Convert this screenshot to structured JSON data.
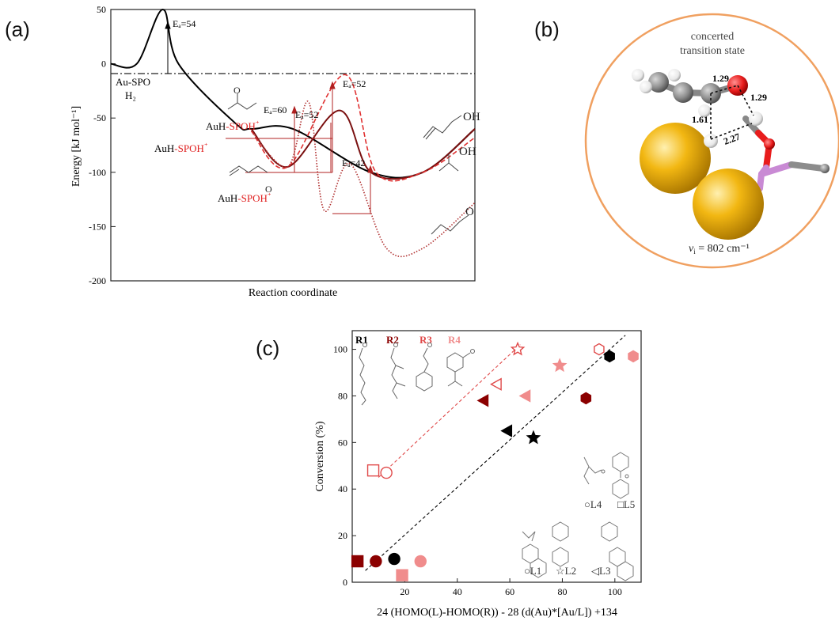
{
  "panels": {
    "a": {
      "label": "(a)"
    },
    "b": {
      "label": "(b)"
    },
    "c": {
      "label": "(c)"
    }
  },
  "chart_data": [
    {
      "panel": "a",
      "type": "line",
      "xlabel": "Reaction coordinate",
      "ylabel": "Energy [kJ mol⁻¹]",
      "ylim": [
        -200,
        50
      ],
      "yticks": [
        50,
        0,
        -50,
        -100,
        -150,
        -200
      ],
      "grid": false,
      "reference_line_y": 0,
      "series": [
        {
          "color": "#000000",
          "style": "solid",
          "x": [
            0,
            0.5,
            1,
            1.3,
            2.4,
            2.7,
            3.5,
            5,
            6,
            7
          ],
          "y": [
            0,
            0,
            50,
            0,
            -55,
            -60,
            -60,
            -100,
            -100,
            -60
          ]
        },
        {
          "color": "#7a1010",
          "style": "solid",
          "x": [
            2.7,
            3.4,
            4.4,
            5,
            6,
            7
          ],
          "y": [
            -60,
            -95,
            -43,
            -100,
            -100,
            -60
          ]
        },
        {
          "color": "#e03030",
          "style": "dashed",
          "x": [
            2.7,
            3.4,
            4.5,
            5.1,
            6,
            7
          ],
          "y": [
            -62,
            -95,
            -10,
            -100,
            -100,
            -68
          ]
        },
        {
          "color": "#b03030",
          "style": "dotted",
          "x": [
            2.7,
            3.4,
            3.8,
            4.1,
            4.6,
            5.3,
            6,
            7
          ],
          "y": [
            -62,
            -95,
            -35,
            -135,
            -92,
            -170,
            -170,
            -128
          ]
        }
      ],
      "annotations": [
        {
          "text": "Eₐ=54",
          "value": 54
        },
        {
          "text": "Eₐ=60",
          "value": 60
        },
        {
          "text": "Eₐ=52",
          "value": 52
        },
        {
          "text": "Eₐ=52",
          "value": 52
        },
        {
          "text": "Eₐ=42",
          "value": 42
        }
      ],
      "species": {
        "s1": "Au-SPO",
        "s2": "H₂",
        "s3a": "AuH",
        "s3b": "-SPOH",
        "s3c": "⁺",
        "s4a": "AuH",
        "s4b": "-SPOH",
        "s4c": "⁺",
        "s5a": "AuH",
        "s5b": "-SPOH",
        "s5c": "⁺",
        "m_o": "O",
        "m_oh1": "OH",
        "m_oh2": "OH",
        "m_o2": "O"
      }
    },
    {
      "panel": "c",
      "type": "scatter",
      "xlabel": "24 (HOMO(L)-HOMO(R)) - 28 (d(Au)*[Au/L]) +134",
      "ylabel": "Conversion (%)",
      "xlim": [
        0,
        110
      ],
      "ylim": [
        0,
        108
      ],
      "xticks": [
        20,
        40,
        60,
        80,
        100
      ],
      "yticks": [
        0,
        20,
        40,
        60,
        80,
        100
      ],
      "grid": false,
      "reactant_labels": [
        "R1",
        "R2",
        "R3",
        "R4"
      ],
      "ligand_labels": [
        "○L4",
        "□L5",
        "○L1",
        "☆L2",
        "◁L3"
      ],
      "colors": {
        "R1": "#000000",
        "R2": "#8b0000",
        "R3": "#e04a4a",
        "R4": "#f08c8c"
      },
      "fit_lines": [
        {
          "color": "#e04a4a",
          "x": [
            10,
            64
          ],
          "y": [
            45,
            102
          ]
        },
        {
          "color": "#000000",
          "x": [
            5,
            104
          ],
          "y": [
            5,
            106
          ]
        }
      ],
      "points": [
        {
          "x": 2,
          "y": 9,
          "marker": "square",
          "color": "#8b0000",
          "filled": true
        },
        {
          "x": 9,
          "y": 9,
          "marker": "circle",
          "color": "#8b0000",
          "filled": true
        },
        {
          "x": 16,
          "y": 10,
          "marker": "circle",
          "color": "#000000",
          "filled": true
        },
        {
          "x": 19,
          "y": 3,
          "marker": "square",
          "color": "#f08c8c",
          "filled": true
        },
        {
          "x": 26,
          "y": 9,
          "marker": "circle",
          "color": "#f08c8c",
          "filled": true
        },
        {
          "x": 8,
          "y": 48,
          "marker": "square",
          "color": "#e04a4a",
          "filled": false
        },
        {
          "x": 13,
          "y": 47,
          "marker": "circle",
          "color": "#e04a4a",
          "filled": false
        },
        {
          "x": 50,
          "y": 78,
          "marker": "triangle",
          "color": "#8b0000",
          "filled": true
        },
        {
          "x": 55,
          "y": 85,
          "marker": "triangle",
          "color": "#e04a4a",
          "filled": false
        },
        {
          "x": 59,
          "y": 65,
          "marker": "triangle",
          "color": "#000000",
          "filled": true
        },
        {
          "x": 63,
          "y": 100,
          "marker": "star",
          "color": "#e04a4a",
          "filled": false
        },
        {
          "x": 66,
          "y": 80,
          "marker": "triangle",
          "color": "#f08c8c",
          "filled": true
        },
        {
          "x": 69,
          "y": 62,
          "marker": "star",
          "color": "#000000",
          "filled": true
        },
        {
          "x": 79,
          "y": 93,
          "marker": "star",
          "color": "#f08c8c",
          "filled": true
        },
        {
          "x": 89,
          "y": 79,
          "marker": "hexagon",
          "color": "#8b0000",
          "filled": true
        },
        {
          "x": 94,
          "y": 100,
          "marker": "hexagon",
          "color": "#e04a4a",
          "filled": false
        },
        {
          "x": 98,
          "y": 97,
          "marker": "hexagon",
          "color": "#000000",
          "filled": true
        },
        {
          "x": 107,
          "y": 97,
          "marker": "hexagon",
          "color": "#f08c8c",
          "filled": true
        }
      ]
    }
  ],
  "molecule": {
    "title_line1": "concerted",
    "title_line2": "transition state",
    "bond_129a": "1.29",
    "bond_129b": "1.29",
    "bond_161": "1.61",
    "bond_227": "2.27",
    "freq_sym": "ν",
    "freq_sub": "i",
    "freq_val": " = 802 cm⁻¹",
    "atom_gold": "#f2b712",
    "atom_oxygen": "#e81c1c",
    "atom_carbon": "#8c8c8c",
    "atom_hydrogen": "#f4f4f4",
    "atom_phosphorus": "#c98ad4",
    "frame_color": "#f0a060"
  }
}
